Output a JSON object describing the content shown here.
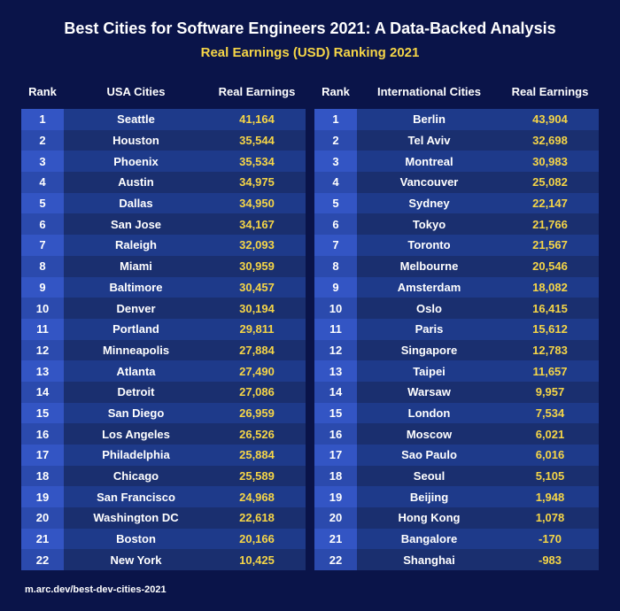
{
  "title": "Best Cities for Software Engineers 2021: A Data-Backed Analysis",
  "subtitle": "Real Earnings (USD) Ranking 2021",
  "footer": "m.arc.dev/best-dev-cities-2021",
  "colors": {
    "background": "#0a1449",
    "title_text": "#ffffff",
    "subtitle_text": "#f5d547",
    "header_text": "#ffffff",
    "rank_text": "#ffffff",
    "city_text": "#ffffff",
    "earnings_text": "#f5d547",
    "row_stripe_light": "#1e3a8a",
    "row_stripe_dark": "#1a2f6f",
    "rank_bg_light": "#3355c4",
    "rank_bg_dark": "#2b4aad"
  },
  "typography": {
    "title_fontsize": 18,
    "subtitle_fontsize": 15,
    "header_fontsize": 13,
    "cell_fontsize": 13,
    "footer_fontsize": 11,
    "title_weight": 700,
    "header_weight": 700,
    "cell_weight": 600
  },
  "left_table": {
    "headers": {
      "rank": "Rank",
      "city": "USA Cities",
      "earn": "Real Earnings"
    },
    "rows": [
      {
        "rank": "1",
        "city": "Seattle",
        "earn": "41,164"
      },
      {
        "rank": "2",
        "city": "Houston",
        "earn": "35,544"
      },
      {
        "rank": "3",
        "city": "Phoenix",
        "earn": "35,534"
      },
      {
        "rank": "4",
        "city": "Austin",
        "earn": "34,975"
      },
      {
        "rank": "5",
        "city": "Dallas",
        "earn": "34,950"
      },
      {
        "rank": "6",
        "city": "San Jose",
        "earn": "34,167"
      },
      {
        "rank": "7",
        "city": "Raleigh",
        "earn": "32,093"
      },
      {
        "rank": "8",
        "city": "Miami",
        "earn": "30,959"
      },
      {
        "rank": "9",
        "city": "Baltimore",
        "earn": "30,457"
      },
      {
        "rank": "10",
        "city": "Denver",
        "earn": "30,194"
      },
      {
        "rank": "11",
        "city": "Portland",
        "earn": "29,811"
      },
      {
        "rank": "12",
        "city": "Minneapolis",
        "earn": "27,884"
      },
      {
        "rank": "13",
        "city": "Atlanta",
        "earn": "27,490"
      },
      {
        "rank": "14",
        "city": "Detroit",
        "earn": "27,086"
      },
      {
        "rank": "15",
        "city": "San Diego",
        "earn": "26,959"
      },
      {
        "rank": "16",
        "city": "Los Angeles",
        "earn": "26,526"
      },
      {
        "rank": "17",
        "city": "Philadelphia",
        "earn": "25,884"
      },
      {
        "rank": "18",
        "city": "Chicago",
        "earn": "25,589"
      },
      {
        "rank": "19",
        "city": "San Francisco",
        "earn": "24,968"
      },
      {
        "rank": "20",
        "city": "Washington DC",
        "earn": "22,618"
      },
      {
        "rank": "21",
        "city": "Boston",
        "earn": "20,166"
      },
      {
        "rank": "22",
        "city": "New York",
        "earn": "10,425"
      }
    ]
  },
  "right_table": {
    "headers": {
      "rank": "Rank",
      "city": "International Cities",
      "earn": "Real Earnings"
    },
    "rows": [
      {
        "rank": "1",
        "city": "Berlin",
        "earn": "43,904"
      },
      {
        "rank": "2",
        "city": "Tel Aviv",
        "earn": "32,698"
      },
      {
        "rank": "3",
        "city": "Montreal",
        "earn": "30,983"
      },
      {
        "rank": "4",
        "city": "Vancouver",
        "earn": "25,082"
      },
      {
        "rank": "5",
        "city": "Sydney",
        "earn": "22,147"
      },
      {
        "rank": "6",
        "city": "Tokyo",
        "earn": "21,766"
      },
      {
        "rank": "7",
        "city": "Toronto",
        "earn": "21,567"
      },
      {
        "rank": "8",
        "city": "Melbourne",
        "earn": "20,546"
      },
      {
        "rank": "9",
        "city": "Amsterdam",
        "earn": "18,082"
      },
      {
        "rank": "10",
        "city": "Oslo",
        "earn": "16,415"
      },
      {
        "rank": "11",
        "city": "Paris",
        "earn": "15,612"
      },
      {
        "rank": "12",
        "city": "Singapore",
        "earn": "12,783"
      },
      {
        "rank": "13",
        "city": "Taipei",
        "earn": "11,657"
      },
      {
        "rank": "14",
        "city": "Warsaw",
        "earn": "9,957"
      },
      {
        "rank": "15",
        "city": "London",
        "earn": "7,534"
      },
      {
        "rank": "16",
        "city": "Moscow",
        "earn": "6,021"
      },
      {
        "rank": "17",
        "city": "Sao Paulo",
        "earn": "6,016"
      },
      {
        "rank": "18",
        "city": "Seoul",
        "earn": "5,105"
      },
      {
        "rank": "19",
        "city": "Beijing",
        "earn": "1,948"
      },
      {
        "rank": "20",
        "city": "Hong Kong",
        "earn": "1,078"
      },
      {
        "rank": "21",
        "city": "Bangalore",
        "earn": "-170"
      },
      {
        "rank": "22",
        "city": "Shanghai",
        "earn": "-983"
      }
    ]
  }
}
